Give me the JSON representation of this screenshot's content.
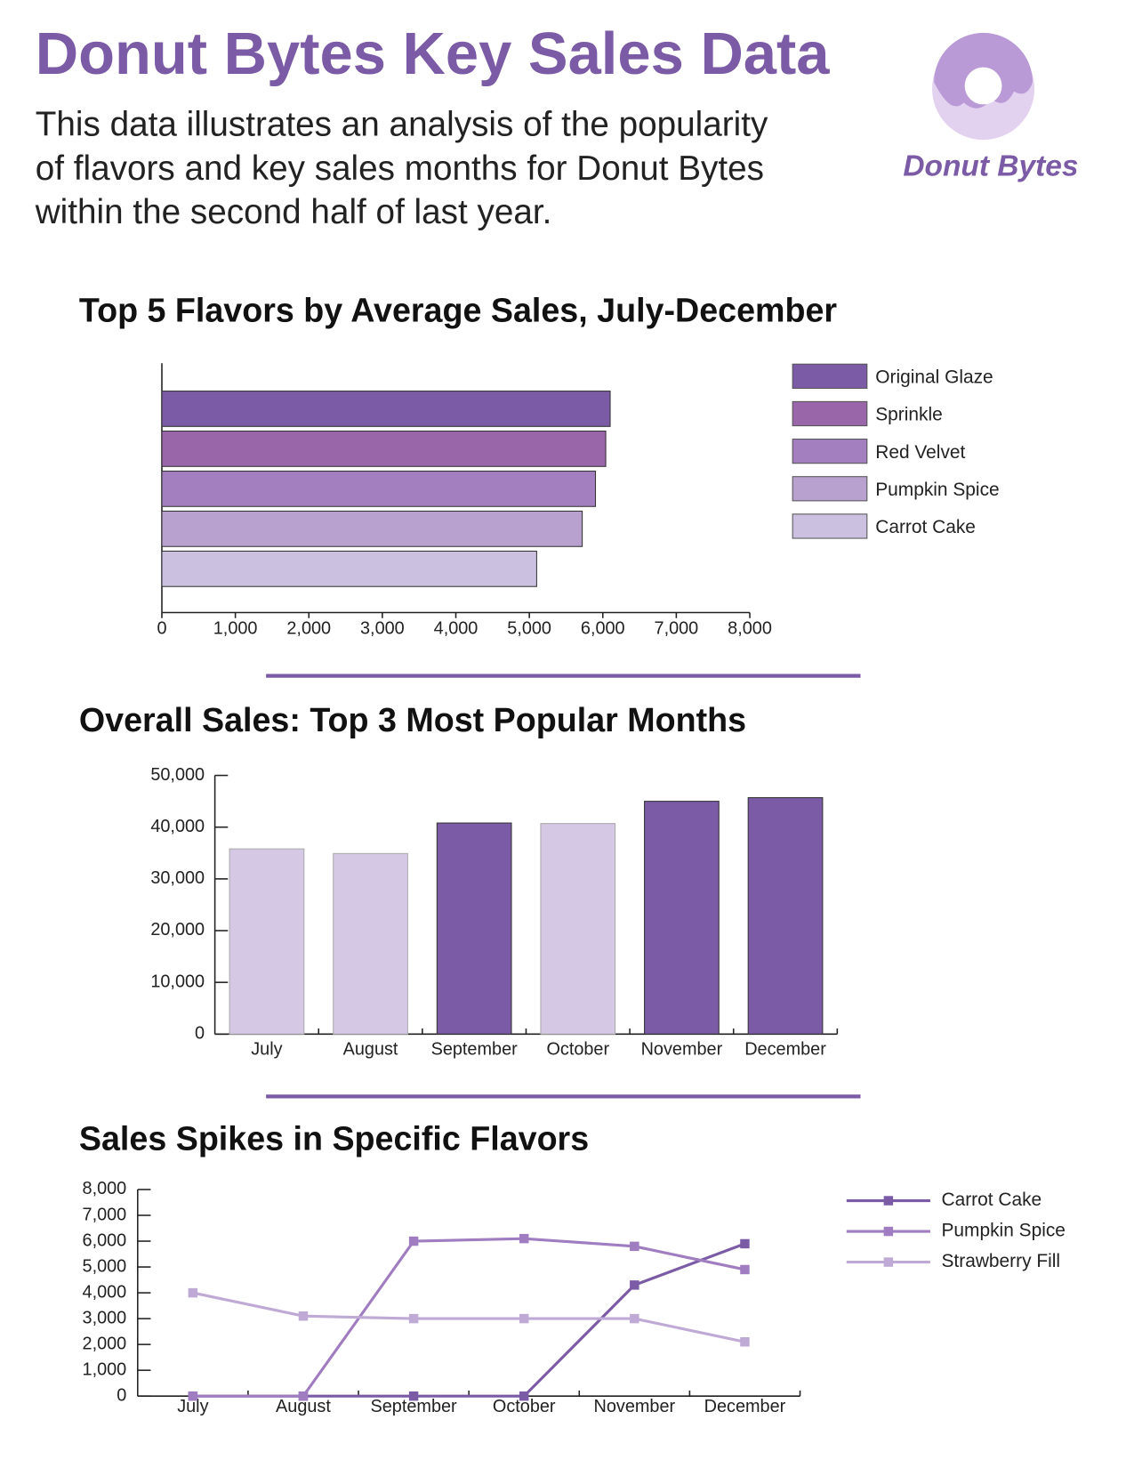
{
  "header": {
    "title": "Donut Bytes Key Sales Data",
    "description": [
      "This data illustrates an analysis of the popularity",
      "of flavors and key sales months for Donut Bytes",
      "within the second half of last year."
    ],
    "logo_text": "Donut Bytes"
  },
  "chart_data": [
    {
      "type": "bar",
      "orientation": "horizontal",
      "title": "Top 5 Flavors by Average Sales, July-December",
      "categories": [
        "Original Glaze",
        "Sprinkle",
        "Red Velvet",
        "Pumpkin Spice",
        "Carrot Cake"
      ],
      "values": [
        6100,
        6040,
        5900,
        5720,
        5100
      ],
      "colors": [
        "#7b5aa6",
        "#9966aa",
        "#a47fbf",
        "#b8a1cf",
        "#cbc0e0"
      ],
      "xlim": [
        0,
        8000
      ],
      "xticks": [
        0,
        {
          "value": 1000,
          "label": "1,000"
        },
        {
          "value": 2000,
          "label": "2,000"
        },
        {
          "value": 3000,
          "label": "3,000"
        },
        {
          "value": 4000,
          "label": "4,000"
        },
        {
          "value": 5000,
          "label": "5,000"
        },
        {
          "value": 6000,
          "label": "6,000"
        },
        {
          "value": 7000,
          "label": "7,000"
        },
        {
          "value": 8000,
          "label": "8,000"
        }
      ],
      "legend": "right"
    },
    {
      "type": "bar",
      "orientation": "vertical",
      "title": "Overall Sales: Top 3 Most Popular Months",
      "categories": [
        "July",
        "August",
        "September",
        "October",
        "November",
        "December"
      ],
      "values": [
        35800,
        34900,
        40800,
        40700,
        45000,
        45700
      ],
      "colors": [
        "#d5c8e4",
        "#d5c8e4",
        "#7b5aa6",
        "#d5c8e4",
        "#7b5aa6",
        "#7b5aa6"
      ],
      "ylim": [
        0,
        50000
      ],
      "yticks": [
        0,
        {
          "value": 10000,
          "label": "10,000"
        },
        {
          "value": 20000,
          "label": "20,000"
        },
        {
          "value": 30000,
          "label": "30,000"
        },
        {
          "value": 40000,
          "label": "40,000"
        },
        {
          "value": 50000,
          "label": "50,000"
        }
      ]
    },
    {
      "type": "line",
      "title": "Sales Spikes in Specific Flavors",
      "categories": [
        "July",
        "August",
        "September",
        "October",
        "November",
        "December"
      ],
      "series": [
        {
          "name": "Carrot Cake",
          "color": "#7b5aa6",
          "values": [
            0,
            0,
            0,
            0,
            4300,
            5900
          ]
        },
        {
          "name": "Pumpkin Spice",
          "color": "#a07cc0",
          "values": [
            0,
            0,
            6000,
            6100,
            5800,
            4900
          ]
        },
        {
          "name": "Strawberry Fill",
          "color": "#bfaad6",
          "values": [
            4000,
            3100,
            3000,
            3000,
            3000,
            2100
          ]
        }
      ],
      "ylim": [
        0,
        8000
      ],
      "yticks": [
        0,
        {
          "value": 1000,
          "label": "1,000"
        },
        {
          "value": 2000,
          "label": "2,000"
        },
        {
          "value": 3000,
          "label": "3,000"
        },
        {
          "value": 4000,
          "label": "4,000"
        },
        {
          "value": 5000,
          "label": "5,000"
        },
        {
          "value": 6000,
          "label": "6,000"
        },
        {
          "value": 7000,
          "label": "7,000"
        },
        {
          "value": 8000,
          "label": "8,000"
        }
      ],
      "legend": "right"
    }
  ]
}
